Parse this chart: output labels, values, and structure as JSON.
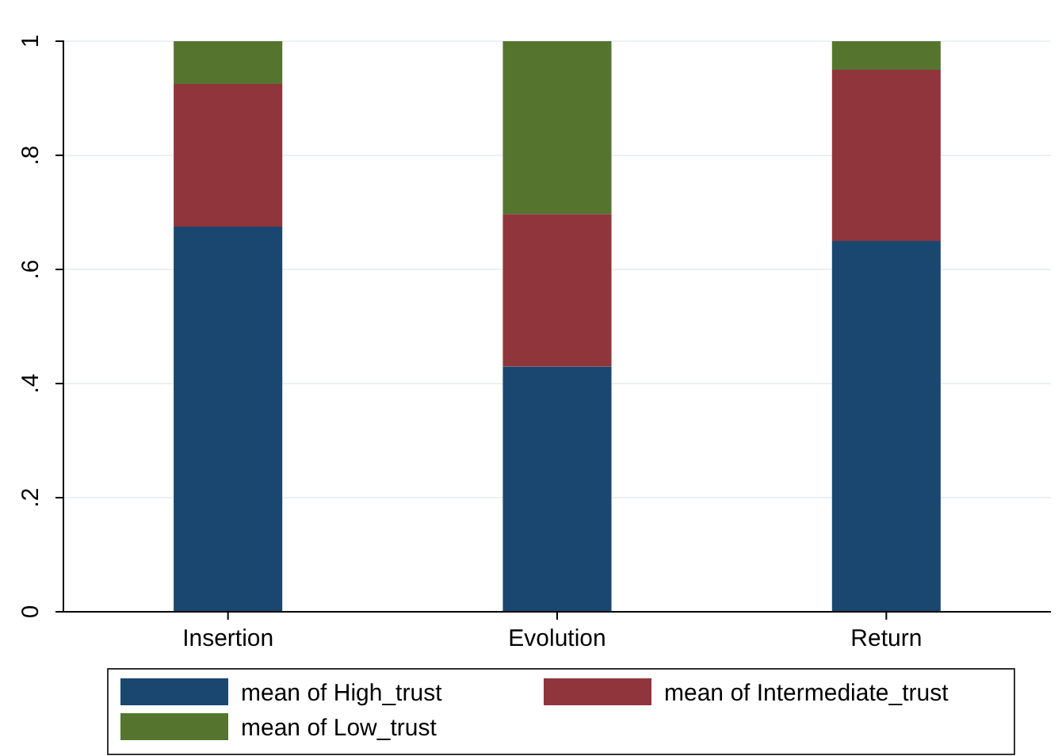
{
  "chart_data": {
    "type": "bar",
    "stacked": true,
    "categories": [
      "Insertion",
      "Evolution",
      "Return"
    ],
    "series": [
      {
        "name": "mean of High_trust",
        "color": "#1a476f",
        "values": [
          0.675,
          0.43,
          0.65
        ]
      },
      {
        "name": "mean of Intermediate_trust",
        "color": "#90353b",
        "values": [
          0.25,
          0.267,
          0.3
        ]
      },
      {
        "name": "mean of Low_trust",
        "color": "#55752f",
        "values": [
          0.075,
          0.303,
          0.05
        ]
      }
    ],
    "ylim": [
      0,
      1
    ],
    "yticks": [
      {
        "value": 0,
        "label": "0"
      },
      {
        "value": 0.2,
        "label": ".2"
      },
      {
        "value": 0.4,
        "label": ".4"
      },
      {
        "value": 0.6,
        "label": ".6"
      },
      {
        "value": 0.8,
        "label": ".8"
      },
      {
        "value": 1,
        "label": "1"
      }
    ],
    "grid": "y",
    "legend": "bottom"
  }
}
